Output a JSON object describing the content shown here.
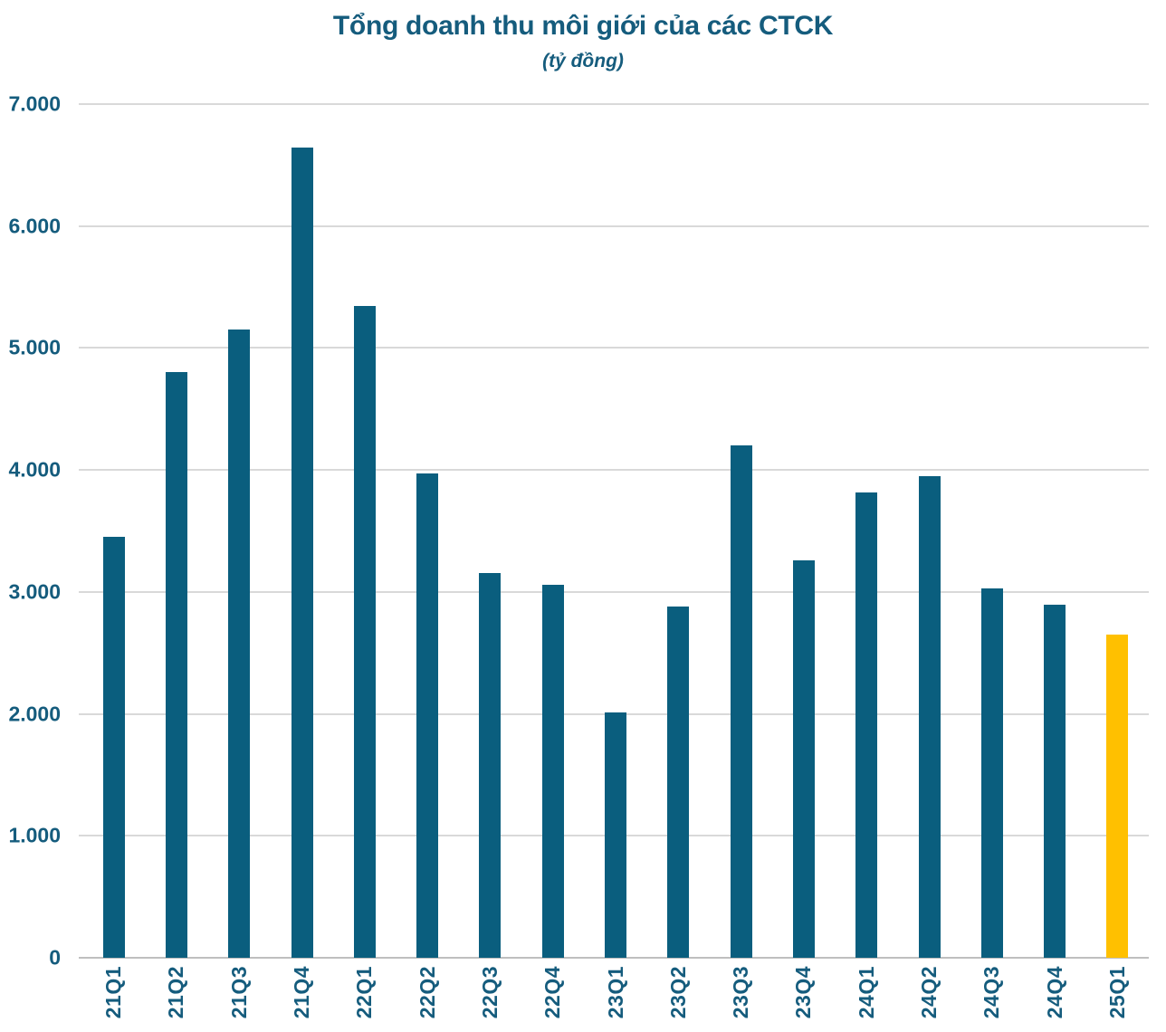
{
  "chart_data": {
    "type": "bar",
    "title": "Tổng doanh thu môi giới của các CTCK",
    "subtitle": "(tỷ đồng)",
    "xlabel": "",
    "ylabel": "",
    "categories": [
      "21Q1",
      "21Q2",
      "21Q3",
      "21Q4",
      "22Q1",
      "22Q2",
      "22Q3",
      "22Q4",
      "23Q1",
      "23Q2",
      "23Q3",
      "23Q4",
      "24Q1",
      "24Q2",
      "24Q3",
      "24Q4",
      "25Q1"
    ],
    "values": [
      3450,
      4805,
      5150,
      6645,
      5345,
      3975,
      3155,
      3060,
      2010,
      2880,
      4200,
      3260,
      3815,
      3950,
      3030,
      2895,
      2650
    ],
    "ylim": [
      0,
      7000
    ],
    "ytick_step": 1000,
    "ytick_labels": [
      "0",
      "1.000",
      "2.000",
      "3.000",
      "4.000",
      "5.000",
      "6.000",
      "7.000"
    ],
    "grid": true,
    "legend": "none",
    "bar_color": "#0A5E7E",
    "highlight_index": 16,
    "highlight_color": "#FFC000",
    "text_color": "#155C7D",
    "gridline_color": "#D9D9D9",
    "axis_line_color": "#BFBFBF"
  }
}
